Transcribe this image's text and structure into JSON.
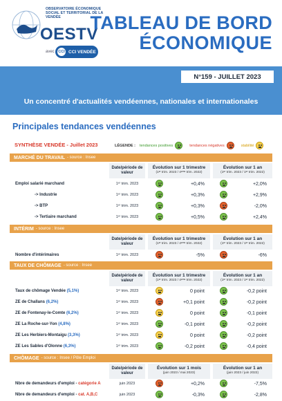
{
  "header": {
    "observatory": "OBSERVATOIRE ÉCONOMIQUE SOCIAL ET TERRITORIAL DE LA VENDÉE",
    "logo": "OESTV",
    "avec": "avec",
    "cci_mark": "CCI",
    "cci": "CCI VENDÉE",
    "title_line1": "TABLEAU DE BORD",
    "title_line2": "ÉCONOMIQUE"
  },
  "issue": "N°159 - JUILLET 2023",
  "tagline": "Un concentré d'actualités vendéennes, nationales et internationales",
  "section_title": "Principales tendances vendéennes",
  "synthesis": "SYNTHÈSE VENDÉE - Juillet 2023",
  "legend": {
    "label": "LÉGENDE :",
    "positive": "tendances positives",
    "negative": "tendances négatives",
    "stable": "stabilité"
  },
  "columns": {
    "date": "Date/période de valeur",
    "quarter": "Évolution sur 1 trimestre",
    "quarter_sub": "(1ᵉʳ trim. 2023 / 4ᵉᵐᵉ trim. 2022)",
    "year": "Évolution sur 1 an",
    "year_sub": "(1ᵉʳ trim. 2023 / 1ᵉʳ trim. 2022)",
    "month": "Évolution sur 1 mois",
    "month_sub": "(juin 2023 / mai 2023)",
    "year_month_sub": "(juin 2023 / juin 2022)"
  },
  "sections": {
    "travail": {
      "title": "MARCHÉ DU TRAVAIL",
      "source": "- source : Insee"
    },
    "interim": {
      "title": "INTÉRIM",
      "source": "- source : Insee"
    },
    "chomage_taux": {
      "title": "TAUX DE CHÔMAGE",
      "source": "- source : Insee"
    },
    "chomage": {
      "title": "CHÔMAGE",
      "source": "- source : Insee / Pôle Emploi"
    }
  },
  "rows_travail": [
    {
      "label": "Emploi salarié marchand",
      "date": "1ᵉʳ trim. 2023",
      "t1": "+0,4%",
      "i1": "pos",
      "t2": "+2,0%",
      "i2": "pos"
    },
    {
      "label": "-> Industrie",
      "date": "1ᵉʳ trim. 2023",
      "t1": "+0,3%",
      "i1": "pos",
      "t2": "+2,9%",
      "i2": "pos"
    },
    {
      "label": "-> BTP",
      "date": "1ᵉʳ trim. 2023",
      "t1": "+0,3%",
      "i1": "pos",
      "t2": "-2,0%",
      "i2": "neg"
    },
    {
      "label": "-> Tertiaire marchand",
      "date": "1ᵉʳ trim. 2023",
      "t1": "+0,5%",
      "i1": "pos",
      "t2": "+2,4%",
      "i2": "pos"
    }
  ],
  "rows_interim": [
    {
      "label": "Nombre d'intérimaires",
      "date": "1ᵉʳ trim. 2023",
      "t1": "-5%",
      "i1": "neg",
      "t2": "-6%",
      "i2": "neg"
    }
  ],
  "rows_taux": [
    {
      "label": "Taux de chômage Vendée",
      "pct": "(5,1%)",
      "date": "1ᵉʳ trim. 2023",
      "t1": "0 point",
      "i1": "sta",
      "t2": "-0,2 point",
      "i2": "pos"
    },
    {
      "label": "ZE de Challans",
      "pct": "(6,2%)",
      "date": "1ᵉʳ trim. 2023",
      "t1": "+0,1 point",
      "i1": "neg",
      "t2": "-0,2 point",
      "i2": "pos"
    },
    {
      "label": "ZE de Fontenay-le-Comte",
      "pct": "(6,2%)",
      "date": "1ᵉʳ trim. 2023",
      "t1": "0 point",
      "i1": "sta",
      "t2": "-0,1 point",
      "i2": "pos"
    },
    {
      "label": "ZE La Roche-sur-Yon",
      "pct": "(4,8%)",
      "date": "1ᵉʳ trim. 2023",
      "t1": "-0,1 point",
      "i1": "pos",
      "t2": "-0,2 point",
      "i2": "pos"
    },
    {
      "label": "ZE Les Herbiers-Montaigu",
      "pct": "(3,3%)",
      "date": "1ᵉʳ trim. 2023",
      "t1": "0 point",
      "i1": "sta",
      "t2": "-0,2 point",
      "i2": "pos"
    },
    {
      "label": "ZE Les Sables d'Olonne",
      "pct": "(6,3%)",
      "date": "1ᵉʳ trim. 2023",
      "t1": "-0,2 point",
      "i1": "pos",
      "t2": "-0,4 point",
      "i2": "pos"
    }
  ],
  "rows_chomage": [
    {
      "label": "Nbre de demandeurs d'emploi - ",
      "cat": "catégorie A",
      "date": "juin 2023",
      "t1": "+0,2%",
      "i1": "neg",
      "t2": "-7,5%",
      "i2": "pos"
    },
    {
      "label": "Nbre de demandeurs d'emploi - ",
      "cat": "cat. A,B,C",
      "date": "juin 2023",
      "t1": "-0,3%",
      "i1": "pos",
      "t2": "-2,8%",
      "i2": "pos"
    }
  ],
  "colors": {
    "band": "#4a8fd0",
    "section": "#e8a24a",
    "title": "#2a6cc0"
  }
}
